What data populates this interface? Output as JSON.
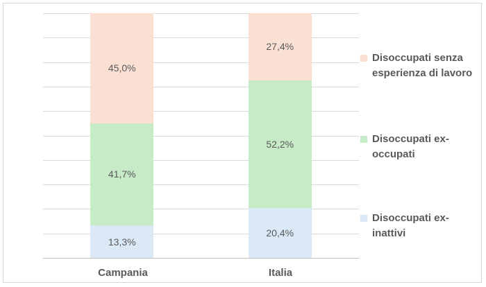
{
  "chart": {
    "background": "#FFFFFF",
    "border_color": "#D6D6D6",
    "gridline_color": "#D9D9D9",
    "axis_line_color": "#BFBFBF",
    "text_color": "#595959"
  },
  "chart_data": {
    "type": "bar",
    "subtype": "stacked-100-column",
    "title": "",
    "xlabel": "",
    "ylabel": "",
    "categories": [
      "Campania",
      "Italia"
    ],
    "series": [
      {
        "name": "Disoccupati senza esperienza di lavoro",
        "color": "#FAE0D3",
        "values": [
          45.0,
          27.4
        ],
        "labels": [
          "45,0%",
          "27,4%"
        ]
      },
      {
        "name": "Disoccupati ex-occupati",
        "color": "#C7EAC7",
        "values": [
          41.7,
          52.2
        ],
        "labels": [
          "41,7%",
          "52,2%"
        ]
      },
      {
        "name": "Disoccupati ex-inattivi",
        "color": "#DBE8F5",
        "values": [
          13.3,
          20.4
        ],
        "labels": [
          "13,3%",
          "20,4%"
        ]
      }
    ],
    "ylim": [
      0,
      100
    ],
    "grid": true,
    "gridline_step_percent": 10,
    "y_axis_labels_visible": false,
    "legend_position": "right"
  },
  "legend": {
    "items": [
      {
        "lines": [
          "Disoccupati senza",
          "esperienza di lavoro"
        ]
      },
      {
        "lines": [
          "Disoccupati ex-",
          "occupati"
        ]
      },
      {
        "lines": [
          "Disoccupati ex-",
          "inattivi"
        ]
      }
    ]
  }
}
